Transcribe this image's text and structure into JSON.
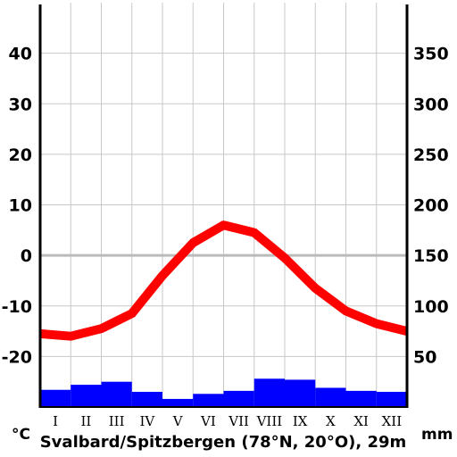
{
  "chart_data": {
    "type": "bar+line",
    "title": "Svalbard/Spitzbergen (78°N, 20°O), 29m",
    "categories": [
      "I",
      "II",
      "III",
      "IV",
      "V",
      "VI",
      "VII",
      "VIII",
      "IX",
      "X",
      "XI",
      "XII"
    ],
    "temperature": {
      "unit": "°C",
      "values": [
        -15.5,
        -16,
        -14.5,
        -11.5,
        -4,
        2.5,
        6,
        4.5,
        -0.5,
        -6.5,
        -11,
        -13.5,
        -15
      ],
      "line_color": "#ff0000",
      "ylim": [
        -30,
        50
      ],
      "ticks": [
        40,
        30,
        20,
        10,
        0,
        -10,
        -20
      ]
    },
    "precipitation": {
      "unit": "mm",
      "values": [
        17,
        22,
        25,
        15,
        8,
        13,
        16,
        28,
        27,
        19,
        16,
        15
      ],
      "bar_color": "#0000ff",
      "ylim": [
        0,
        400
      ],
      "ticks": [
        350,
        300,
        250,
        200,
        150,
        100,
        50
      ]
    },
    "zero_line_color": "#bbbbbb",
    "grid": true
  }
}
